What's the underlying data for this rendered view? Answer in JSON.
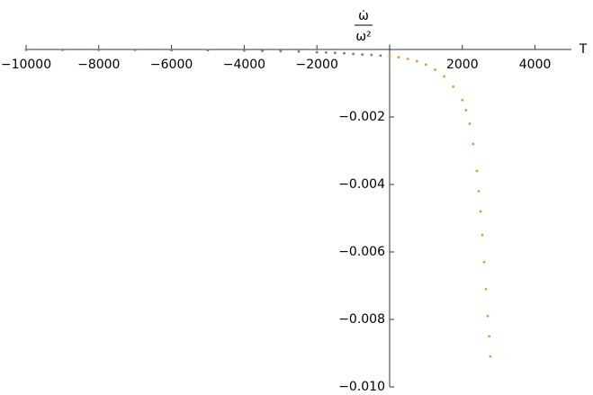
{
  "chart_data": {
    "type": "scatter",
    "ylabel_numerator": "ω̇",
    "ylabel_denominator": "ω²",
    "xlabel": "T",
    "xlim": [
      -10000,
      5000
    ],
    "ylim": [
      -0.01,
      0.00015
    ],
    "xticks": [
      {
        "value": -10000,
        "label": "−10000"
      },
      {
        "value": -8000,
        "label": "−8000"
      },
      {
        "value": -6000,
        "label": "−6000"
      },
      {
        "value": -4000,
        "label": "−4000"
      },
      {
        "value": -2000,
        "label": "−2000"
      },
      2000,
      4000
    ],
    "yticks": [
      {
        "value": -0.01,
        "label": "−0.010"
      },
      {
        "value": -0.008,
        "label": "−0.008"
      },
      {
        "value": -0.006,
        "label": "−0.006"
      },
      {
        "value": -0.004,
        "label": "−0.004"
      },
      {
        "value": -0.002,
        "label": "−0.002"
      }
    ],
    "series": [
      {
        "color": "#5e81b5",
        "x": [
          -10000,
          -9000,
          -8000,
          -7000,
          -6000,
          -5000,
          -4000,
          -3500,
          -3000,
          -2500,
          -2000,
          -1750,
          -1500,
          -1250,
          -1000,
          -750,
          -500,
          -250,
          0
        ],
        "values": [
          -1e-05,
          -1e-05,
          -1e-05,
          -1e-05,
          -2e-05,
          -2e-05,
          -3e-05,
          -4e-05,
          -5e-05,
          -6e-05,
          -8e-05,
          -9e-05,
          -0.0001,
          -0.00011,
          -0.00013,
          -0.00015,
          -0.00016,
          -0.00018,
          -0.0002
        ]
      },
      {
        "color": "#e19c24",
        "x": [
          0,
          250,
          500,
          750,
          1000,
          1250,
          1500,
          1750,
          2000,
          2100,
          2200,
          2300,
          2400,
          2450,
          2500,
          2550,
          2600,
          2650,
          2700,
          2740,
          2770
        ],
        "values": [
          -0.0002,
          -0.00023,
          -0.00028,
          -0.00035,
          -0.00045,
          -0.0006,
          -0.0008,
          -0.0011,
          -0.0015,
          -0.0018,
          -0.0022,
          -0.0028,
          -0.0036,
          -0.0042,
          -0.0048,
          -0.0055,
          -0.0063,
          -0.0071,
          -0.0079,
          -0.0085,
          -0.0091
        ]
      }
    ]
  }
}
